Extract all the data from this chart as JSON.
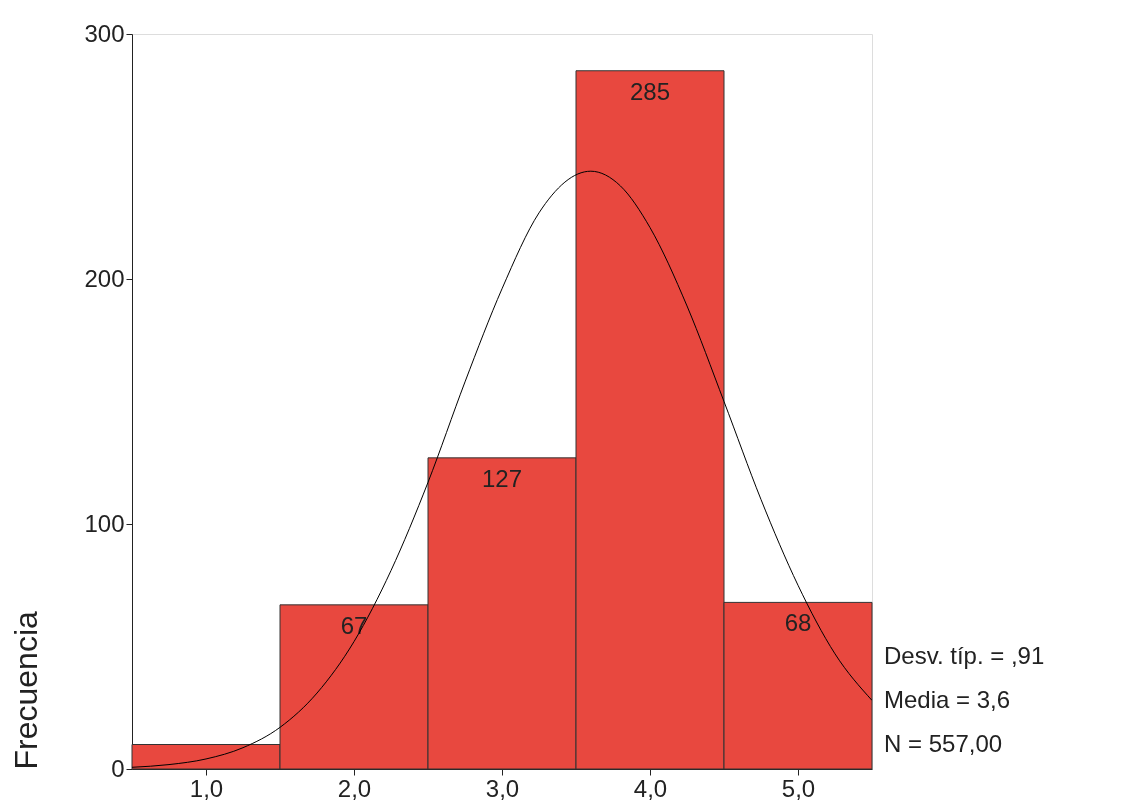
{
  "chart_data": {
    "type": "histogram",
    "ylabel": "Frecuencia",
    "bins": [
      0.5,
      1.5,
      2.5,
      3.5,
      4.5,
      5.5
    ],
    "values": [
      10,
      67,
      127,
      285,
      68
    ],
    "color": "#e8483f",
    "value_labels": [
      null,
      "67",
      "127",
      "285",
      "68"
    ],
    "series": [
      {
        "type": "line",
        "color": "#000000",
        "x": [
          0.5,
          0.75,
          1.0,
          1.25,
          1.5,
          1.75,
          2.0,
          2.25,
          2.5,
          2.75,
          3.0,
          3.25,
          3.6,
          3.8,
          4.0,
          4.25,
          4.5,
          4.75,
          5.0,
          5.25,
          5.5
        ],
        "values": [
          0.7,
          1.8,
          4.1,
          8.7,
          17,
          31,
          52,
          81,
          117,
          158,
          196,
          227,
          244,
          238,
          221,
          189,
          150,
          110,
          75,
          47,
          28
        ]
      }
    ],
    "xlim": [
      0.5,
      5.5
    ],
    "xticks": [
      {
        "value": 1,
        "label": "1,0"
      },
      {
        "value": 2,
        "label": "2,0"
      },
      {
        "value": 3,
        "label": "3,0"
      },
      {
        "value": 4,
        "label": "4,0"
      },
      {
        "value": 5,
        "label": "5,0"
      }
    ],
    "ylim": [
      0,
      300
    ],
    "yticks": [
      0,
      100,
      200,
      300
    ],
    "grid": false,
    "annotations": [
      "Desv. típ. = ,91",
      "Media = 3,6",
      "N = 557,00"
    ]
  }
}
